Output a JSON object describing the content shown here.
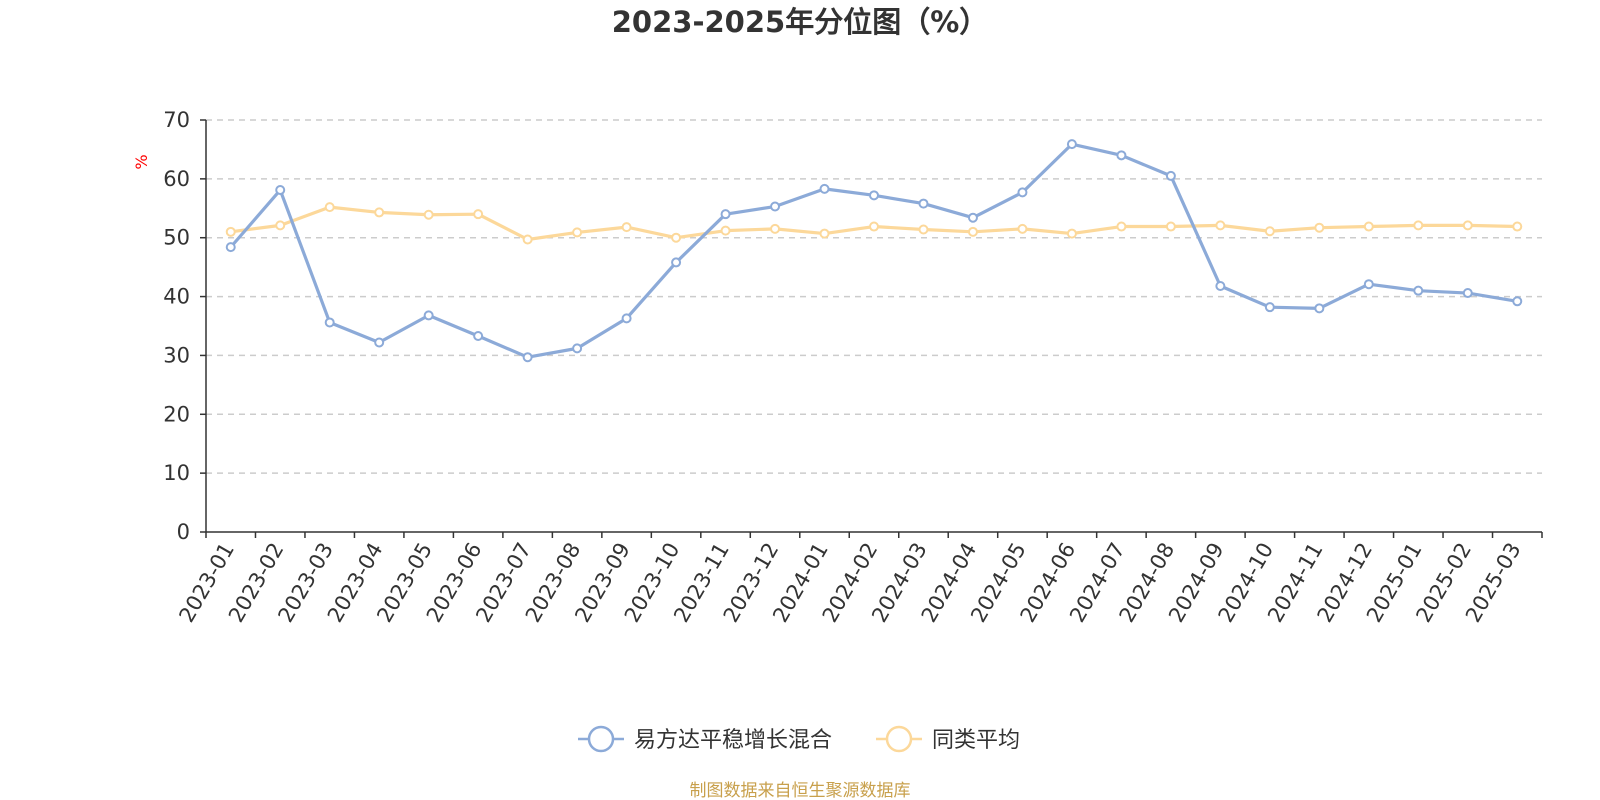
{
  "chart_data": {
    "type": "line",
    "title": "2023-2025年分位图（%）",
    "ylabel": "%",
    "ylim": [
      0,
      70
    ],
    "yticks": [
      0,
      10,
      20,
      30,
      40,
      50,
      60,
      70
    ],
    "grid": true,
    "legend_position": "bottom",
    "categories": [
      "2023-01",
      "2023-02",
      "2023-03",
      "2023-04",
      "2023-05",
      "2023-06",
      "2023-07",
      "2023-08",
      "2023-09",
      "2023-10",
      "2023-11",
      "2023-12",
      "2024-01",
      "2024-02",
      "2024-03",
      "2024-04",
      "2024-05",
      "2024-06",
      "2024-07",
      "2024-08",
      "2024-09",
      "2024-10",
      "2024-11",
      "2024-12",
      "2025-01",
      "2025-02",
      "2025-03"
    ],
    "series": [
      {
        "name": "易方达平稳增长混合",
        "color": "#8caad8",
        "values": [
          48.4,
          58.1,
          35.6,
          32.2,
          36.8,
          33.3,
          29.7,
          31.2,
          36.3,
          45.8,
          54.0,
          55.3,
          58.3,
          57.2,
          55.8,
          53.4,
          57.7,
          65.9,
          64.0,
          60.5,
          41.8,
          38.2,
          38.0,
          42.1,
          41.0,
          40.6,
          39.2
        ]
      },
      {
        "name": "同类平均",
        "color": "#fcd89a",
        "values": [
          51.0,
          52.1,
          55.2,
          54.3,
          53.9,
          54.0,
          49.7,
          50.9,
          51.8,
          50.0,
          51.2,
          51.5,
          50.7,
          51.9,
          51.4,
          51.0,
          51.5,
          50.7,
          51.9,
          51.9,
          52.1,
          51.1,
          51.7,
          51.9,
          52.1,
          52.1,
          51.9
        ]
      }
    ]
  },
  "footer": {
    "source": "制图数据来自恒生聚源数据库"
  }
}
